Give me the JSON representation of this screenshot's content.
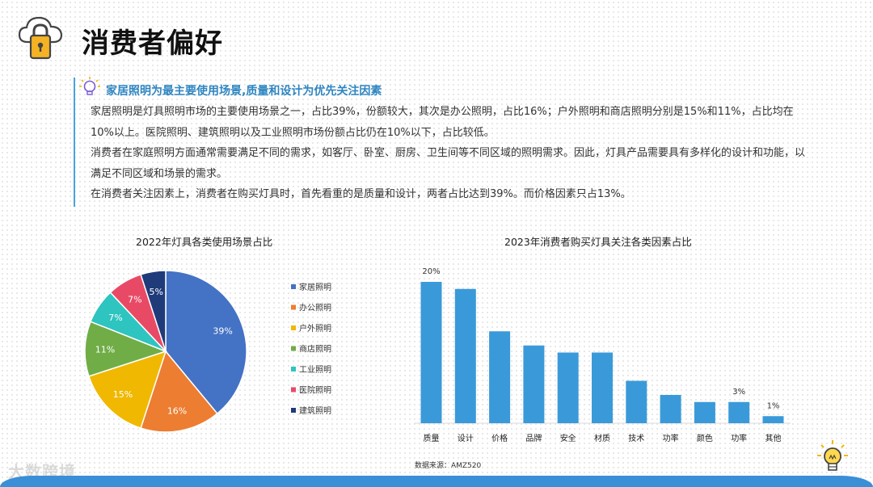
{
  "page": {
    "title": "消费者偏好",
    "watermark": "大数跨境"
  },
  "intro": {
    "heading": "家居照明为最主要使用场景,质量和设计为优先关注因素",
    "paragraphs": [
      "家居照明是灯具照明市场的主要使用场景之一，占比39%，份额较大，其次是办公照明，占比16%；户外照明和商店照明分别是15%和11%，占比均在10%以上。医院照明、建筑照明以及工业照明市场份额占比仍在10%以下，占比较低。",
      "消费者在家庭照明方面通常需要满足不同的需求，如客厅、卧室、厨房、卫生间等不同区域的照明需求。因此，灯具产品需要具有多样化的设计和功能，以满足不同区域和场景的需求。",
      "在消费者关注因素上，消费者在购买灯具时，首先看重的是质量和设计，两者占比达到39%。而价格因素只占13%。"
    ]
  },
  "chart_data": [
    {
      "type": "pie",
      "title": "2022年灯具各类使用场景占比",
      "labels": [
        "家居照明",
        "办公照明",
        "户外照明",
        "商店照明",
        "工业照明",
        "医院照明",
        "建筑照明"
      ],
      "values": [
        39,
        16,
        15,
        11,
        7,
        7,
        5
      ],
      "value_labels": [
        "39%",
        "16%",
        "15%",
        "11%",
        "7%",
        "7%",
        "5%"
      ],
      "colors": [
        "#4472c4",
        "#ed7d31",
        "#f0b800",
        "#70ad47",
        "#2ec4c0",
        "#e84a66",
        "#1f3b7a"
      ],
      "legend_position": "right"
    },
    {
      "type": "bar",
      "title": "2023年消费者购买灯具关注各类因素占比",
      "categories": [
        "质量",
        "设计",
        "价格",
        "品牌",
        "安全",
        "材质",
        "技术",
        "功率",
        "颜色",
        "功率",
        "其他"
      ],
      "values": [
        20,
        19,
        13,
        11,
        10,
        10,
        6,
        4,
        3,
        3,
        1
      ],
      "data_labels": [
        {
          "index": 0,
          "text": "20%"
        },
        {
          "index": 9,
          "text": "3%"
        },
        {
          "index": 10,
          "text": "1%"
        }
      ],
      "color": "#3a9ad9",
      "ylim": [
        0,
        20
      ],
      "grid": false,
      "source": "数据来源：AMZ520"
    }
  ]
}
